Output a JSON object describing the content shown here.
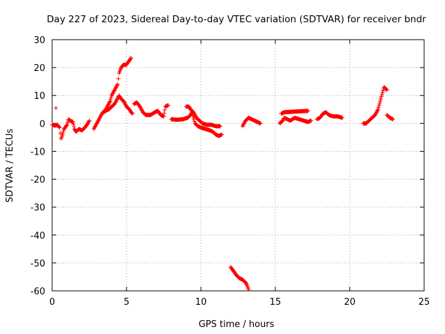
{
  "chart_data": {
    "type": "scatter",
    "title": "Day 227 of 2023, Sidereal Day-to-day VTEC variation (SDTVAR) for receiver bndr",
    "xlabel": "GPS time / hours",
    "ylabel": "SDTVAR / TECUs",
    "xlim": [
      0,
      25
    ],
    "ylim": [
      -60,
      30
    ],
    "x_ticks": [
      0,
      5,
      10,
      15,
      20,
      25
    ],
    "y_ticks": [
      -60,
      -50,
      -40,
      -30,
      -20,
      -10,
      0,
      10,
      20,
      30
    ],
    "grid": true,
    "marker": "+",
    "color": "#ff0000",
    "series": [
      {
        "name": "SDTVAR",
        "segments": [
          [
            [
              0.0,
              -0.5
            ],
            [
              0.2,
              -0.8
            ],
            [
              0.35,
              -0.5
            ],
            [
              0.5,
              -1.5
            ],
            [
              0.55,
              -3.5
            ],
            [
              0.6,
              -5.5
            ],
            [
              0.7,
              -4
            ],
            [
              0.8,
              -2
            ],
            [
              1.0,
              -0.5
            ],
            [
              1.1,
              1.5
            ],
            [
              1.2,
              1
            ],
            [
              1.4,
              0.5
            ],
            [
              1.5,
              -2
            ],
            [
              1.6,
              -3
            ],
            [
              1.8,
              -2
            ],
            [
              2.0,
              -2.5
            ],
            [
              2.2,
              -1.5
            ],
            [
              2.4,
              0
            ],
            [
              2.5,
              1
            ]
          ],
          [
            [
              0.25,
              5.5
            ]
          ],
          [
            [
              2.8,
              -2
            ],
            [
              3.0,
              0
            ],
            [
              3.2,
              2
            ],
            [
              3.4,
              4
            ],
            [
              3.6,
              4.5
            ],
            [
              3.8,
              5
            ],
            [
              4.0,
              6
            ],
            [
              4.2,
              7
            ],
            [
              4.3,
              8
            ],
            [
              4.4,
              9
            ],
            [
              4.5,
              10
            ],
            [
              4.6,
              9
            ],
            [
              4.8,
              8
            ],
            [
              5.0,
              6
            ],
            [
              5.2,
              5
            ],
            [
              5.3,
              4
            ],
            [
              5.4,
              3.5
            ]
          ],
          [
            [
              3.5,
              4
            ],
            [
              3.7,
              6
            ],
            [
              3.9,
              8
            ],
            [
              4.0,
              10
            ],
            [
              4.1,
              11
            ],
            [
              4.2,
              12
            ],
            [
              4.3,
              13
            ],
            [
              4.4,
              14
            ],
            [
              4.45,
              16
            ],
            [
              4.5,
              18
            ],
            [
              4.6,
              19.5
            ],
            [
              4.7,
              20.5
            ],
            [
              4.8,
              21
            ],
            [
              5.0,
              21
            ],
            [
              5.1,
              22
            ],
            [
              5.2,
              22.5
            ],
            [
              5.3,
              23.5
            ]
          ],
          [
            [
              5.5,
              7
            ],
            [
              5.7,
              7.5
            ],
            [
              5.9,
              6
            ],
            [
              6.1,
              4
            ],
            [
              6.3,
              3
            ],
            [
              6.6,
              3
            ],
            [
              6.9,
              4
            ],
            [
              7.1,
              4.5
            ],
            [
              7.3,
              3
            ],
            [
              7.5,
              2.5
            ],
            [
              7.6,
              6
            ],
            [
              7.8,
              6.5
            ]
          ],
          [
            [
              8.0,
              1.5
            ],
            [
              8.4,
              1.3
            ],
            [
              8.8,
              1.5
            ],
            [
              9.1,
              2
            ],
            [
              9.3,
              3
            ],
            [
              9.4,
              4
            ],
            [
              9.5,
              2
            ],
            [
              9.6,
              0
            ],
            [
              9.8,
              -1
            ],
            [
              10.0,
              -1.5
            ],
            [
              10.3,
              -2
            ],
            [
              10.6,
              -2.5
            ],
            [
              10.8,
              -3
            ],
            [
              11.0,
              -4
            ],
            [
              11.2,
              -4.5
            ],
            [
              11.4,
              -4
            ]
          ],
          [
            [
              9.0,
              6
            ],
            [
              9.2,
              6
            ],
            [
              9.3,
              5
            ],
            [
              9.5,
              4
            ],
            [
              9.7,
              2
            ],
            [
              9.9,
              1
            ],
            [
              10.1,
              0
            ],
            [
              10.4,
              -0.5
            ],
            [
              10.7,
              -0.5
            ],
            [
              11.0,
              -1
            ],
            [
              11.3,
              -1
            ]
          ],
          [
            [
              12.0,
              -51.5
            ],
            [
              12.2,
              -53
            ],
            [
              12.4,
              -54.5
            ],
            [
              12.6,
              -55.5
            ],
            [
              12.8,
              -56
            ],
            [
              13.0,
              -57
            ],
            [
              13.1,
              -58
            ],
            [
              13.2,
              -59.5
            ]
          ],
          [
            [
              12.8,
              -1
            ],
            [
              12.9,
              0
            ],
            [
              13.0,
              1
            ],
            [
              13.2,
              2
            ],
            [
              13.4,
              1.5
            ],
            [
              13.6,
              1
            ],
            [
              13.8,
              0.5
            ],
            [
              14.0,
              0
            ]
          ],
          [
            [
              15.3,
              0
            ],
            [
              15.5,
              1
            ],
            [
              15.6,
              2
            ],
            [
              15.8,
              1.5
            ],
            [
              16.0,
              1
            ],
            [
              16.3,
              2
            ],
            [
              16.6,
              1.5
            ],
            [
              16.9,
              1
            ],
            [
              17.2,
              0.5
            ],
            [
              17.4,
              1
            ]
          ],
          [
            [
              15.4,
              3.5
            ],
            [
              15.6,
              4
            ],
            [
              17.2,
              4.5
            ]
          ],
          [
            [
              17.8,
              1.5
            ],
            [
              18.0,
              2
            ],
            [
              18.2,
              3.5
            ],
            [
              18.4,
              4
            ],
            [
              18.6,
              3
            ],
            [
              18.9,
              2.5
            ],
            [
              19.2,
              2.5
            ],
            [
              19.5,
              2
            ]
          ],
          [
            [
              20.9,
              0
            ],
            [
              21.1,
              0
            ],
            [
              21.3,
              1
            ],
            [
              21.5,
              2
            ],
            [
              21.7,
              3
            ],
            [
              21.9,
              5
            ],
            [
              22.0,
              7
            ],
            [
              22.1,
              9
            ],
            [
              22.2,
              11
            ],
            [
              22.3,
              13
            ],
            [
              22.4,
              12.5
            ],
            [
              22.5,
              12
            ]
          ],
          [
            [
              22.5,
              3
            ],
            [
              22.7,
              2
            ],
            [
              22.9,
              1.5
            ]
          ]
        ]
      }
    ]
  }
}
